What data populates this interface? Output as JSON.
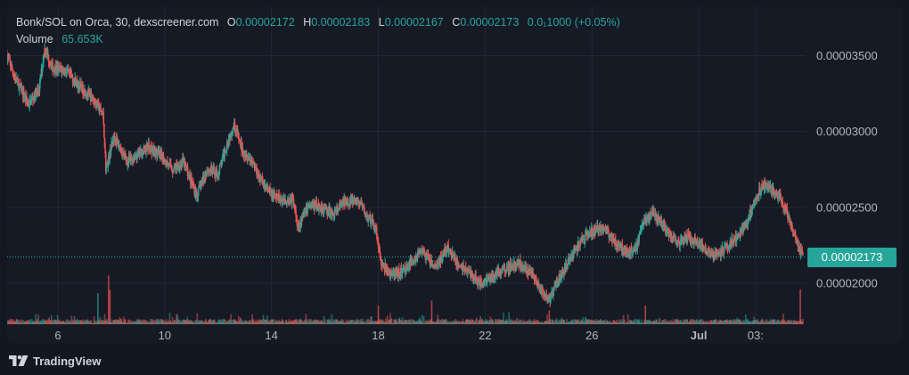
{
  "legend": {
    "pair": "Bonk/SOL on Orca, 30, dexscreener.com",
    "o_label": "O",
    "o_value": "0.00002172",
    "h_label": "H",
    "h_value": "0.00002183",
    "l_label": "L",
    "l_value": "0.00002167",
    "c_label": "C",
    "c_value": "0.00002173",
    "change": "0.0₁1000 (+0.05%)",
    "volume_label": "Volume",
    "volume_value": "65.653K"
  },
  "last_price_label": "0.00002173",
  "branding": {
    "name": "TradingView",
    "logo_icon": "tradingview-logo-icon"
  },
  "colors": {
    "background": "#131722",
    "pane": "#161a25",
    "grid": "#232733",
    "up": "#26a69a",
    "down": "#ef5350",
    "text": "#d1d4dc",
    "axis_text": "#b2b5be"
  },
  "chart_data": {
    "type": "candlestick",
    "title": "Bonk/SOL on Orca, 30, dexscreener.com",
    "y_ticks": [
      {
        "value": 3.5e-05,
        "label": "0.00003500"
      },
      {
        "value": 3e-05,
        "label": "0.00003000"
      },
      {
        "value": 2.5e-05,
        "label": "0.00002500"
      },
      {
        "value": 2e-05,
        "label": "0.00002000"
      }
    ],
    "ylim": [
      1.73e-05,
      3.82e-05
    ],
    "x_ticks": [
      {
        "day": 6,
        "label": "6"
      },
      {
        "day": 10,
        "label": "10"
      },
      {
        "day": 14,
        "label": "14"
      },
      {
        "day": 18,
        "label": "18"
      },
      {
        "day": 22,
        "label": "22"
      },
      {
        "day": 26,
        "label": "26"
      },
      {
        "day": 30,
        "label": "Jul"
      },
      {
        "day": 32.125,
        "label": "03:"
      }
    ],
    "xlim": [
      4.1,
      34.0
    ],
    "last_price": 2.173e-05,
    "price_path": [
      [
        4.1,
        3.5e-05
      ],
      [
        4.4,
        3.35e-05
      ],
      [
        4.9,
        3.18e-05
      ],
      [
        5.3,
        3.28e-05
      ],
      [
        5.5,
        3.55e-05
      ],
      [
        5.8,
        3.42e-05
      ],
      [
        6.3,
        3.4e-05
      ],
      [
        6.8,
        3.3e-05
      ],
      [
        7.4,
        3.2e-05
      ],
      [
        7.7,
        3.1e-05
      ],
      [
        7.8,
        2.75e-05
      ],
      [
        8.1,
        2.97e-05
      ],
      [
        8.6,
        2.8e-05
      ],
      [
        9.0,
        2.85e-05
      ],
      [
        9.4,
        2.9e-05
      ],
      [
        9.9,
        2.83e-05
      ],
      [
        10.3,
        2.75e-05
      ],
      [
        10.7,
        2.8e-05
      ],
      [
        11.2,
        2.58e-05
      ],
      [
        11.6,
        2.75e-05
      ],
      [
        12.0,
        2.72e-05
      ],
      [
        12.3,
        2.9e-05
      ],
      [
        12.6,
        3.05e-05
      ],
      [
        12.9,
        2.88e-05
      ],
      [
        13.3,
        2.8e-05
      ],
      [
        13.6,
        2.68e-05
      ],
      [
        14.0,
        2.58e-05
      ],
      [
        14.4,
        2.55e-05
      ],
      [
        14.8,
        2.55e-05
      ],
      [
        15.0,
        2.37e-05
      ],
      [
        15.4,
        2.52e-05
      ],
      [
        15.9,
        2.5e-05
      ],
      [
        16.3,
        2.45e-05
      ],
      [
        16.8,
        2.55e-05
      ],
      [
        17.3,
        2.53e-05
      ],
      [
        17.6,
        2.43e-05
      ],
      [
        17.9,
        2.37e-05
      ],
      [
        18.1,
        2.13e-05
      ],
      [
        18.5,
        2.05e-05
      ],
      [
        18.9,
        2.08e-05
      ],
      [
        19.2,
        2.13e-05
      ],
      [
        19.6,
        2.22e-05
      ],
      [
        20.1,
        2.1e-05
      ],
      [
        20.6,
        2.23e-05
      ],
      [
        21.0,
        2.12e-05
      ],
      [
        21.4,
        2.07e-05
      ],
      [
        21.8,
        2e-05
      ],
      [
        22.3,
        2.05e-05
      ],
      [
        22.7,
        2.1e-05
      ],
      [
        23.3,
        2.13e-05
      ],
      [
        23.8,
        2.05e-05
      ],
      [
        24.1,
        1.95e-05
      ],
      [
        24.4,
        1.88e-05
      ],
      [
        24.7,
        2.02e-05
      ],
      [
        25.0,
        2.1e-05
      ],
      [
        25.3,
        2.2e-05
      ],
      [
        25.7,
        2.3e-05
      ],
      [
        26.0,
        2.34e-05
      ],
      [
        26.4,
        2.37e-05
      ],
      [
        26.8,
        2.29e-05
      ],
      [
        27.3,
        2.2e-05
      ],
      [
        27.7,
        2.25e-05
      ],
      [
        27.9,
        2.4e-05
      ],
      [
        28.3,
        2.47e-05
      ],
      [
        28.7,
        2.36e-05
      ],
      [
        29.2,
        2.27e-05
      ],
      [
        29.6,
        2.3e-05
      ],
      [
        30.1,
        2.25e-05
      ],
      [
        30.6,
        2.18e-05
      ],
      [
        31.0,
        2.23e-05
      ],
      [
        31.4,
        2.3e-05
      ],
      [
        31.8,
        2.4e-05
      ],
      [
        32.1,
        2.55e-05
      ],
      [
        32.4,
        2.65e-05
      ],
      [
        32.7,
        2.62e-05
      ],
      [
        33.0,
        2.58e-05
      ],
      [
        33.3,
        2.47e-05
      ],
      [
        33.6,
        2.3e-05
      ],
      [
        33.9,
        2.17e-05
      ]
    ],
    "volume_spikes": [
      {
        "day": 7.5,
        "value": 0.5
      },
      {
        "day": 7.9,
        "value": 0.78
      },
      {
        "day": 7.95,
        "value": 0.55
      },
      {
        "day": 18.0,
        "value": 0.3
      },
      {
        "day": 20.0,
        "value": 0.38
      },
      {
        "day": 24.4,
        "value": 0.22
      },
      {
        "day": 28.0,
        "value": 0.3
      },
      {
        "day": 33.8,
        "value": 0.56
      }
    ]
  }
}
